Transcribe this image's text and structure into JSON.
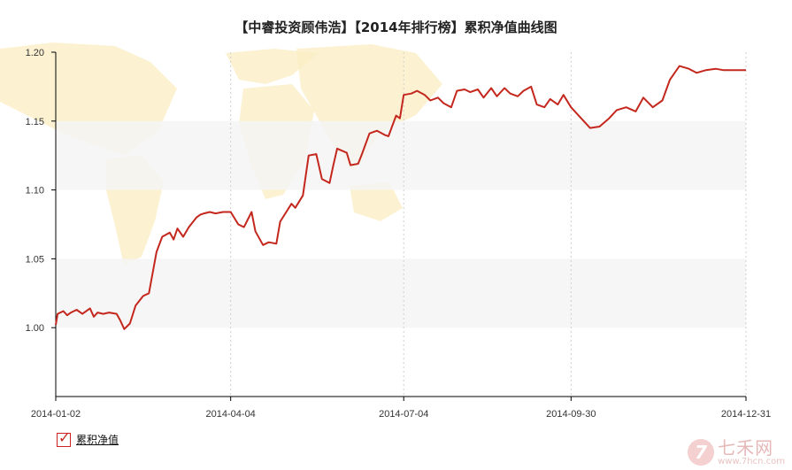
{
  "title": "【中睿投资顾伟浩】【2014年排行榜】累积净值曲线图",
  "legend": {
    "label": "累积净值",
    "checked": true,
    "check_mark": "✓"
  },
  "watermark": {
    "logo_text": "7",
    "name": "七禾网",
    "url": "www.7hcn.com"
  },
  "colors": {
    "line": "#c4271d",
    "band": "#f5f5f5",
    "axis": "#000000",
    "map": "#fbeec3"
  },
  "chart_data": {
    "type": "line",
    "title": "【中睿投资顾伟浩】【2014年排行榜】累积净值曲线图",
    "xlabel": "",
    "ylabel": "",
    "ylim": [
      0.95,
      1.2
    ],
    "y_ticks": [
      "1.00",
      "1.05",
      "1.10",
      "1.15",
      "1.20"
    ],
    "x_ticks": [
      "2014-01-02",
      "2014-04-04",
      "2014-07-04",
      "2014-09-30",
      "2014-12-31"
    ],
    "grid": "vertical dotted lines, alternating horizontal bands",
    "series": [
      {
        "name": "累积净值",
        "x": [
          "2014-01-02",
          "2014-01-03",
          "2014-01-06",
          "2014-01-08",
          "2014-01-10",
          "2014-01-13",
          "2014-01-16",
          "2014-01-20",
          "2014-01-22",
          "2014-01-24",
          "2014-01-27",
          "2014-01-30",
          "2014-02-03",
          "2014-02-05",
          "2014-02-07",
          "2014-02-10",
          "2014-02-13",
          "2014-02-17",
          "2014-02-20",
          "2014-02-24",
          "2014-02-27",
          "2014-03-03",
          "2014-03-05",
          "2014-03-07",
          "2014-03-10",
          "2014-03-13",
          "2014-03-17",
          "2014-03-19",
          "2014-03-21",
          "2014-03-24",
          "2014-03-27",
          "2014-03-31",
          "2014-04-04",
          "2014-04-08",
          "2014-04-11",
          "2014-04-15",
          "2014-04-17",
          "2014-04-21",
          "2014-04-24",
          "2014-04-28",
          "2014-04-30",
          "2014-05-06",
          "2014-05-08",
          "2014-05-12",
          "2014-05-15",
          "2014-05-19",
          "2014-05-22",
          "2014-05-26",
          "2014-05-28",
          "2014-05-30",
          "2014-06-04",
          "2014-06-06",
          "2014-06-10",
          "2014-06-12",
          "2014-06-16",
          "2014-06-18",
          "2014-06-20",
          "2014-06-24",
          "2014-06-26",
          "2014-06-30",
          "2014-07-02",
          "2014-07-04",
          "2014-07-08",
          "2014-07-11",
          "2014-07-15",
          "2014-07-18",
          "2014-07-22",
          "2014-07-25",
          "2014-07-29",
          "2014-08-01",
          "2014-08-05",
          "2014-08-08",
          "2014-08-12",
          "2014-08-15",
          "2014-08-19",
          "2014-08-22",
          "2014-08-26",
          "2014-08-29",
          "2014-09-02",
          "2014-09-05",
          "2014-09-09",
          "2014-09-12",
          "2014-09-16",
          "2014-09-19",
          "2014-09-23",
          "2014-09-26",
          "2014-09-30",
          "2014-10-10",
          "2014-10-15",
          "2014-10-20",
          "2014-10-24",
          "2014-10-29",
          "2014-11-03",
          "2014-11-07",
          "2014-11-12",
          "2014-11-17",
          "2014-11-21",
          "2014-11-26",
          "2014-12-01",
          "2014-12-05",
          "2014-12-10",
          "2014-12-15",
          "2014-12-19",
          "2014-12-24",
          "2014-12-31"
        ],
        "values": [
          1.002,
          1.01,
          1.012,
          1.009,
          1.011,
          1.013,
          1.01,
          1.014,
          1.008,
          1.011,
          1.01,
          1.011,
          1.01,
          1.005,
          0.999,
          1.003,
          1.016,
          1.023,
          1.025,
          1.055,
          1.066,
          1.069,
          1.064,
          1.072,
          1.066,
          1.073,
          1.08,
          1.082,
          1.083,
          1.084,
          1.083,
          1.084,
          1.084,
          1.075,
          1.073,
          1.084,
          1.07,
          1.06,
          1.062,
          1.061,
          1.077,
          1.09,
          1.087,
          1.096,
          1.125,
          1.126,
          1.108,
          1.105,
          1.118,
          1.13,
          1.127,
          1.118,
          1.119,
          1.126,
          1.141,
          1.142,
          1.143,
          1.14,
          1.139,
          1.154,
          1.152,
          1.169,
          1.17,
          1.172,
          1.169,
          1.165,
          1.167,
          1.163,
          1.16,
          1.172,
          1.173,
          1.171,
          1.173,
          1.167,
          1.174,
          1.168,
          1.174,
          1.17,
          1.168,
          1.172,
          1.175,
          1.162,
          1.16,
          1.166,
          1.162,
          1.169,
          1.16,
          1.145,
          1.146,
          1.152,
          1.158,
          1.16,
          1.157,
          1.167,
          1.16,
          1.165,
          1.18,
          1.19,
          1.188,
          1.185,
          1.187,
          1.188,
          1.187,
          1.187,
          1.187
        ]
      }
    ]
  }
}
